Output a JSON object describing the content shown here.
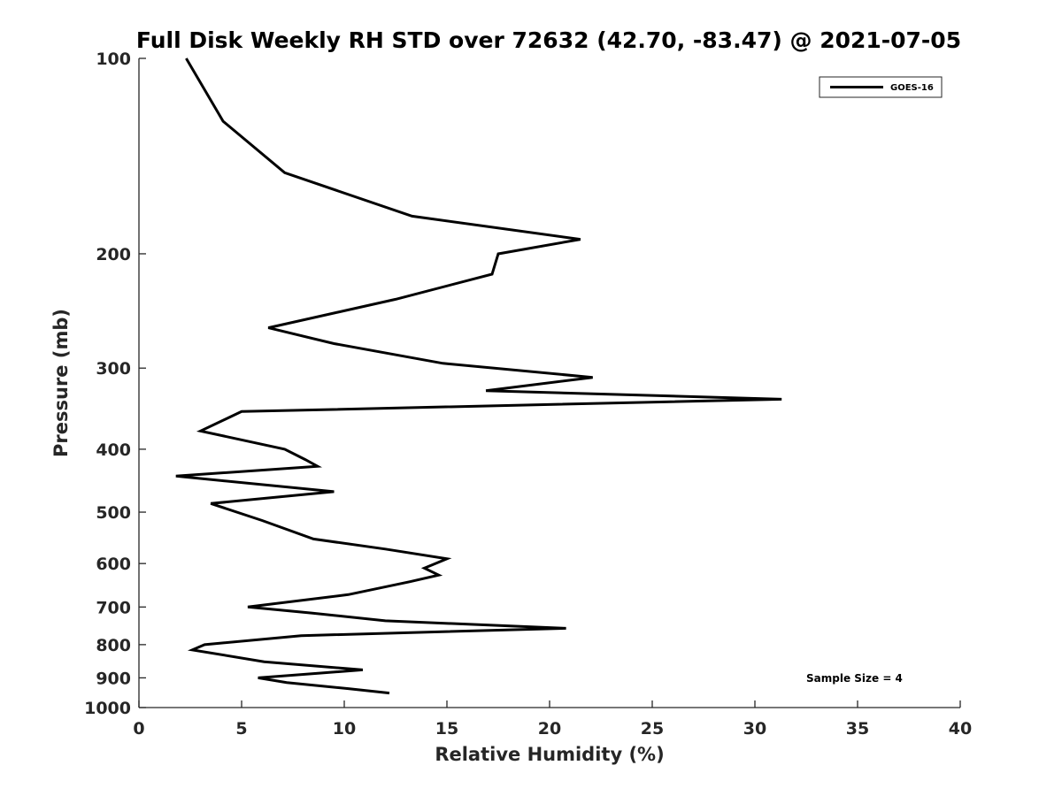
{
  "chart_data": {
    "type": "line",
    "title": "Full Disk Weekly RH STD over 72632 (42.70, -83.47) @ 2021-07-05",
    "xlabel": "Relative Humidity (%)",
    "ylabel": "Pressure (mb)",
    "xlim": [
      0,
      40
    ],
    "ylim": [
      100,
      1000
    ],
    "y_scale": "log",
    "y_reversed": true,
    "x_ticks": [
      0,
      5,
      10,
      15,
      20,
      25,
      30,
      35,
      40
    ],
    "x_tick_labels": [
      "0",
      "5",
      "10",
      "15",
      "20",
      "25",
      "30",
      "35",
      "40"
    ],
    "y_ticks": [
      100,
      200,
      300,
      400,
      500,
      600,
      700,
      800,
      900,
      1000
    ],
    "y_tick_labels": [
      "100",
      "200",
      "300",
      "400",
      "500",
      "600",
      "700",
      "800",
      "900",
      "1000"
    ],
    "grid": false,
    "legend_position": "top-right",
    "series": [
      {
        "name": "GOES-16",
        "color": "#000000",
        "points": [
          [
            2.3,
            100
          ],
          [
            4.1,
            125
          ],
          [
            7.1,
            150
          ],
          [
            13.3,
            175
          ],
          [
            21.5,
            190
          ],
          [
            17.5,
            200
          ],
          [
            17.2,
            215
          ],
          [
            12.5,
            235
          ],
          [
            6.3,
            260
          ],
          [
            9.5,
            275
          ],
          [
            14.8,
            295
          ],
          [
            22.1,
            310
          ],
          [
            16.9,
            325
          ],
          [
            31.3,
            335
          ],
          [
            5.0,
            350
          ],
          [
            3.0,
            375
          ],
          [
            7.1,
            400
          ],
          [
            8.1,
            415
          ],
          [
            8.7,
            425
          ],
          [
            1.8,
            440
          ],
          [
            9.5,
            465
          ],
          [
            3.5,
            485
          ],
          [
            6.0,
            515
          ],
          [
            8.5,
            550
          ],
          [
            12.0,
            570
          ],
          [
            15.0,
            590
          ],
          [
            13.9,
            610
          ],
          [
            14.6,
            625
          ],
          [
            13.2,
            640
          ],
          [
            10.2,
            670
          ],
          [
            5.3,
            700
          ],
          [
            8.4,
            715
          ],
          [
            12.0,
            735
          ],
          [
            20.8,
            755
          ],
          [
            7.9,
            775
          ],
          [
            3.2,
            800
          ],
          [
            2.6,
            815
          ],
          [
            6.1,
            850
          ],
          [
            10.9,
            875
          ],
          [
            5.8,
            900
          ],
          [
            7.2,
            915
          ],
          [
            10.2,
            935
          ],
          [
            12.2,
            950
          ]
        ]
      }
    ],
    "annotation": "Sample Size = 4"
  }
}
